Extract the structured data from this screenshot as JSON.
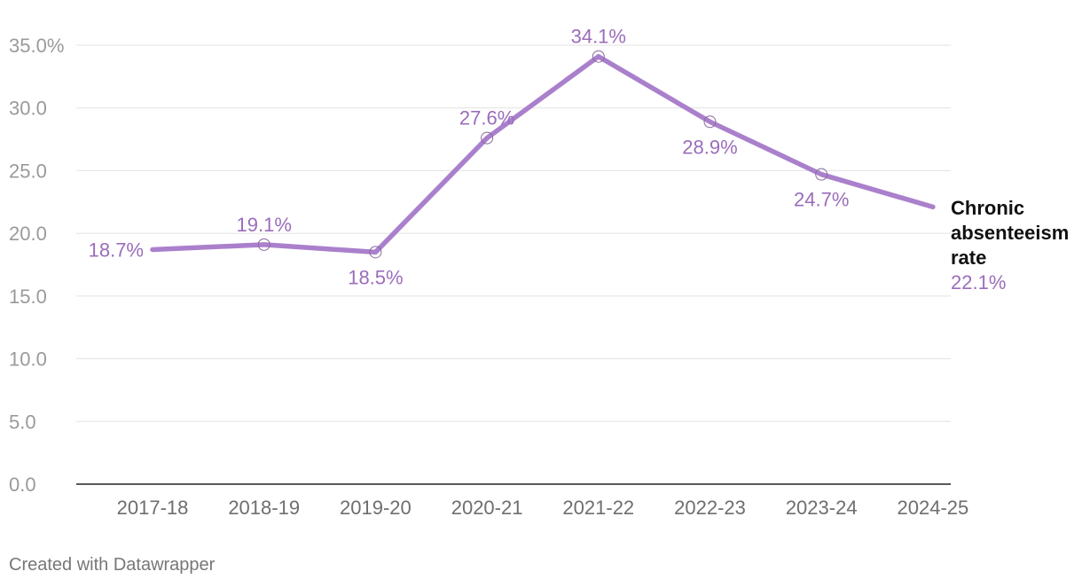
{
  "chart_data": {
    "type": "line",
    "categories": [
      "2017-18",
      "2018-19",
      "2019-20",
      "2020-21",
      "2021-22",
      "2022-23",
      "2023-24",
      "2024-25"
    ],
    "series": [
      {
        "name": "Chronic absenteeism rate",
        "name_lines": [
          "Chronic",
          "absenteeism",
          "rate"
        ],
        "values": [
          18.7,
          19.1,
          18.5,
          27.6,
          34.1,
          28.9,
          24.7,
          22.1
        ],
        "labels": [
          "18.7%",
          "19.1%",
          "18.5%",
          "27.6%",
          "34.1%",
          "28.9%",
          "24.7%",
          "22.1%"
        ],
        "color": "#aa80cc",
        "label_color": "#9b6dbb"
      }
    ],
    "ylim": [
      0,
      35
    ],
    "yticks": [
      0,
      5,
      10,
      15,
      20,
      25,
      30,
      35
    ],
    "ytick_labels": [
      "0.0",
      "5.0",
      "10.0",
      "15.0",
      "20.0",
      "25.0",
      "30.0",
      "35.0%"
    ],
    "grid": true,
    "title": "",
    "xlabel": "",
    "ylabel": ""
  },
  "footer": {
    "credit": "Created with Datawrapper"
  }
}
